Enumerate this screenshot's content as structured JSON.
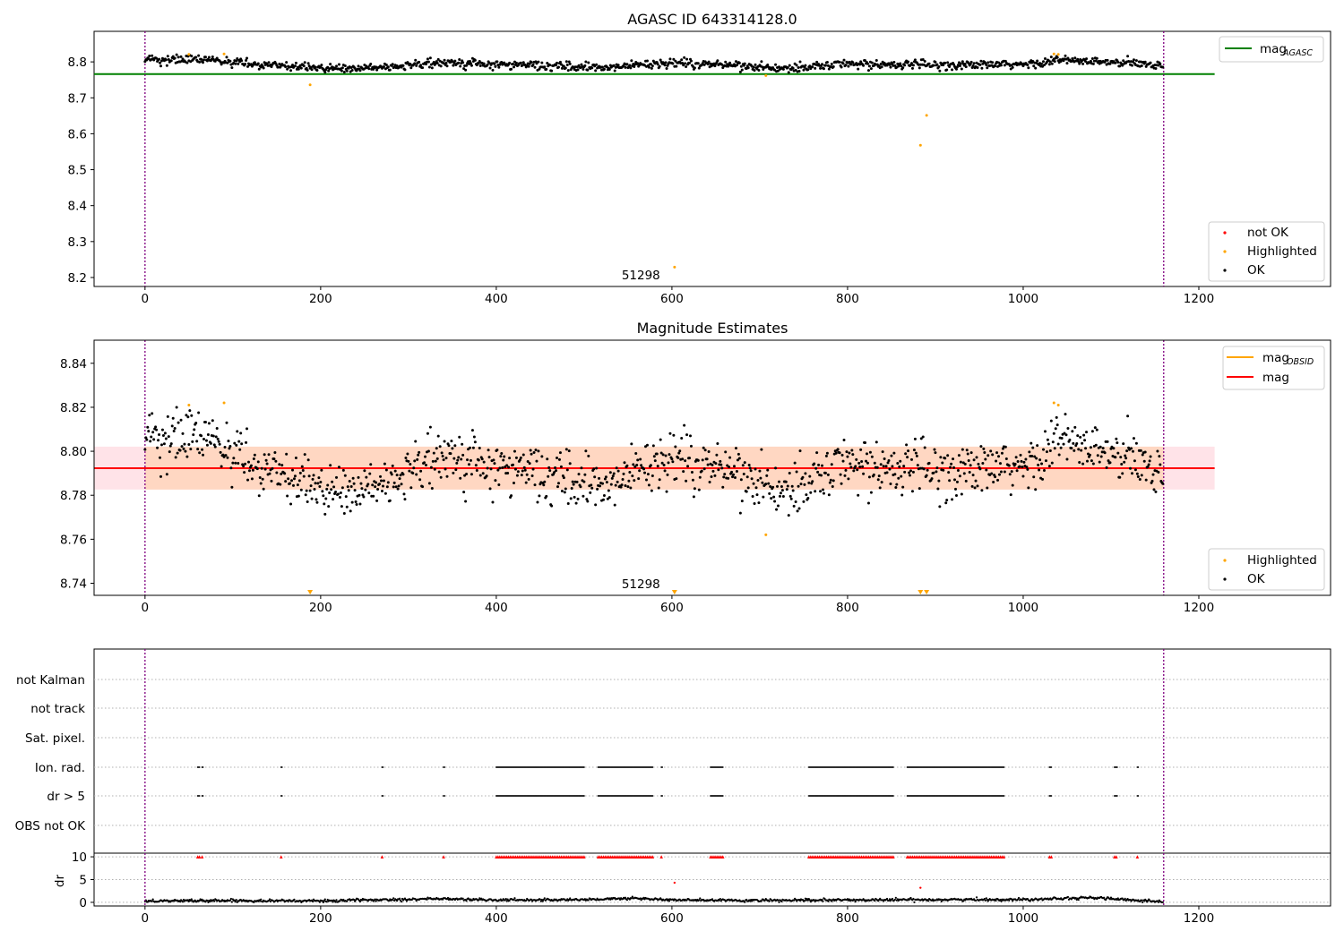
{
  "colors": {
    "ok": "#000000",
    "highlighted": "#ffa500",
    "not_ok": "#ff0000",
    "mag_agasc": "#008000",
    "mag_obsid": "#ffa500",
    "mag": "#ff0000",
    "band_obsid": "#ffd7c2",
    "band_mag": "#ffe3e8",
    "obs_boundary": "#800080",
    "grid": "#b0b0b0"
  },
  "chart_data": [
    {
      "type": "scatter",
      "title": "AGASC ID 643314128.0",
      "xlim": [
        -58,
        1350
      ],
      "ylim": [
        8.175,
        8.885
      ],
      "xticks": [
        0,
        200,
        400,
        600,
        800,
        1000,
        1200
      ],
      "yticks": [
        8.2,
        8.3,
        8.4,
        8.5,
        8.6,
        8.7,
        8.8
      ],
      "ytick_labels": [
        "8.2",
        "8.3",
        "8.4",
        "8.5",
        "8.6",
        "8.7",
        "8.8"
      ],
      "obs_boundaries": [
        0,
        1160
      ],
      "obsid_annotation": {
        "text": "51298",
        "x": 580
      },
      "mag_line": {
        "value": 8.766,
        "x": [
          -58,
          1218
        ]
      },
      "legend": {
        "line_entry": {
          "name": "mag",
          "sub": "AGASC"
        },
        "point_entries": [
          "not OK",
          "Highlighted",
          "OK"
        ]
      },
      "ok_profile": {
        "n": 1160,
        "noise": 0.006,
        "base": 8.793,
        "anchors": [
          [
            0,
            8.807
          ],
          [
            60,
            8.806
          ],
          [
            120,
            8.795
          ],
          [
            200,
            8.783
          ],
          [
            240,
            8.779
          ],
          [
            300,
            8.792
          ],
          [
            340,
            8.797
          ],
          [
            420,
            8.791
          ],
          [
            520,
            8.785
          ],
          [
            600,
            8.797
          ],
          [
            680,
            8.79
          ],
          [
            720,
            8.781
          ],
          [
            800,
            8.795
          ],
          [
            900,
            8.791
          ],
          [
            1000,
            8.792
          ],
          [
            1040,
            8.805
          ],
          [
            1100,
            8.798
          ],
          [
            1160,
            8.792
          ]
        ]
      },
      "highlighted": [
        [
          50,
          8.821
        ],
        [
          90,
          8.822
        ],
        [
          188,
          8.736
        ],
        [
          603,
          8.229
        ],
        [
          707,
          8.762
        ],
        [
          883,
          8.568
        ],
        [
          890,
          8.651
        ],
        [
          1035,
          8.822
        ],
        [
          1040,
          8.821
        ]
      ]
    },
    {
      "type": "scatter",
      "title": "Magnitude Estimates",
      "xlim": [
        -58,
        1350
      ],
      "ylim": [
        8.7345,
        8.8505
      ],
      "xticks": [
        0,
        200,
        400,
        600,
        800,
        1000,
        1200
      ],
      "yticks": [
        8.74,
        8.76,
        8.78,
        8.8,
        8.82,
        8.84
      ],
      "ytick_labels": [
        "8.74",
        "8.76",
        "8.78",
        "8.80",
        "8.82",
        "8.84"
      ],
      "obs_boundaries": [
        0,
        1160
      ],
      "obsid_annotation": {
        "text": "51298",
        "x": 580
      },
      "mag_line": {
        "value": 8.7923,
        "x": [
          -58,
          1218
        ]
      },
      "band_mag": [
        8.7826,
        8.8021
      ],
      "band_obsid": [
        8.7826,
        8.8021
      ],
      "legend": {
        "line_entries": [
          {
            "name": "mag",
            "sub": "OBSID"
          },
          {
            "name": "mag",
            "sub": ""
          }
        ],
        "point_entries": [
          "Highlighted",
          "OK"
        ]
      },
      "highlighted": [
        [
          50,
          8.821
        ],
        [
          90,
          8.822
        ],
        [
          707,
          8.762
        ],
        [
          1035,
          8.822
        ],
        [
          1040,
          8.821
        ]
      ],
      "off_scale_markers": [
        188,
        603,
        883,
        890
      ]
    },
    {
      "type": "scatter",
      "xlim": [
        -58,
        1350
      ],
      "categories": [
        "not Kalman",
        "not track",
        "Sat. pixel.",
        "Ion. rad.",
        "dr > 5",
        "OBS not OK"
      ],
      "obs_boundaries": [
        0,
        1160
      ],
      "flag_runs": [
        [
          60,
          62
        ],
        [
          65,
          66
        ],
        [
          155,
          156
        ],
        [
          270,
          271
        ],
        [
          340,
          341
        ],
        [
          400,
          500
        ],
        [
          516,
          578
        ],
        [
          588,
          589
        ],
        [
          644,
          658
        ],
        [
          756,
          852
        ],
        [
          868,
          978
        ],
        [
          1030,
          1032
        ],
        [
          1104,
          1107
        ],
        [
          1130,
          1131
        ]
      ],
      "flagged_categories": [
        "Ion. rad.",
        "dr > 5"
      ]
    },
    {
      "type": "scatter",
      "ylabel": "dr",
      "xlim": [
        -58,
        1350
      ],
      "ylim": [
        -0.8,
        10.8
      ],
      "yticks": [
        0,
        5,
        10
      ],
      "ytick_labels": [
        "0",
        "5",
        "10"
      ],
      "xticks": [
        0,
        200,
        400,
        600,
        800,
        1000,
        1200
      ],
      "dr_profile": {
        "anchors": [
          [
            0,
            0.3
          ],
          [
            100,
            0.4
          ],
          [
            200,
            0.3
          ],
          [
            330,
            0.8
          ],
          [
            400,
            0.5
          ],
          [
            500,
            0.6
          ],
          [
            560,
            0.9
          ],
          [
            600,
            0.5
          ],
          [
            700,
            0.4
          ],
          [
            800,
            0.5
          ],
          [
            900,
            0.6
          ],
          [
            1000,
            0.6
          ],
          [
            1040,
            0.9
          ],
          [
            1090,
            1.0
          ],
          [
            1110,
            0.6
          ],
          [
            1160,
            0.2
          ]
        ],
        "noise": 0.25
      },
      "dr_outliers": [
        [
          603,
          4.3
        ],
        [
          883,
          3.2
        ]
      ],
      "red_markers_at": 10
    }
  ]
}
